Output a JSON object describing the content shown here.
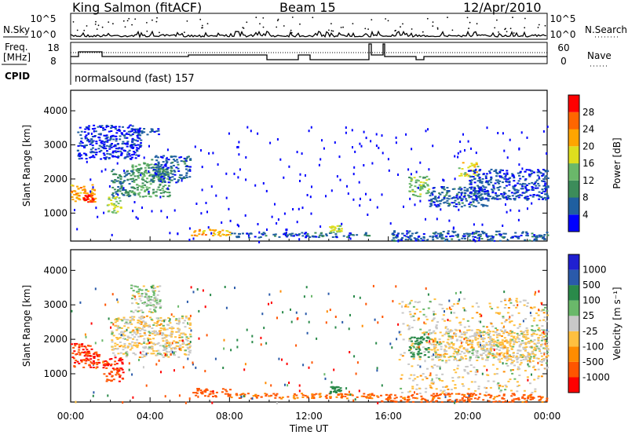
{
  "header": {
    "station": "King Salmon (fitACF)",
    "beam": "Beam 15",
    "date": "12/Apr/2010"
  },
  "top_panels": {
    "nsky_label": "N.Sky",
    "nsearch_label": "N.Search",
    "count_ticks": [
      "10^5",
      "10^0"
    ],
    "freq_label": "Freq.",
    "freq_unit": "[MHz]",
    "freq_ticks": [
      18,
      8
    ],
    "nave_label": "Nave",
    "nave_ticks": [
      60,
      0
    ],
    "cpid_label": "CPID",
    "cpid_value": "normalsound (fast) 157"
  },
  "colors": {
    "power_scale": [
      "#0000ff",
      "#1f5fa0",
      "#3c8c5a",
      "#6ab86a",
      "#dede1e",
      "#ffa500",
      "#ff6600",
      "#ff0000"
    ],
    "velocity_scale": [
      "#ff0000",
      "#ff5500",
      "#ff8c00",
      "#ffc040",
      "#c8c8c8",
      "#6ab86a",
      "#2a8a4a",
      "#2a5aaa",
      "#2020d0"
    ]
  },
  "chart_data": [
    {
      "type": "heatmap",
      "panel": "power",
      "ylabel": "Slant Range [km]",
      "yticks": [
        1000,
        2000,
        3000,
        4000
      ],
      "ylim": [
        180,
        4600
      ],
      "xlim": [
        0,
        24
      ],
      "colorbar": {
        "label": "Power [dB]",
        "ticks": [
          4,
          8,
          12,
          16,
          20,
          24,
          28
        ],
        "range": [
          0,
          32
        ]
      },
      "regions": [
        {
          "t0": 0.0,
          "t1": 1.2,
          "r0": 1350,
          "r1": 1850,
          "level": 22
        },
        {
          "t0": 0.6,
          "t1": 1.1,
          "r0": 1350,
          "r1": 1550,
          "level": 28
        },
        {
          "t0": 1.8,
          "t1": 2.5,
          "r0": 1000,
          "r1": 1500,
          "level": 16
        },
        {
          "t0": 2.0,
          "t1": 3.2,
          "r0": 1500,
          "r1": 2300,
          "level": 8
        },
        {
          "t0": 3.0,
          "t1": 5.0,
          "r0": 1500,
          "r1": 2500,
          "level": 12
        },
        {
          "t0": 4.0,
          "t1": 6.0,
          "r0": 1900,
          "r1": 2700,
          "level": 6
        },
        {
          "t0": 6.0,
          "t1": 8.0,
          "r0": 350,
          "r1": 550,
          "level": 22
        },
        {
          "t0": 8.0,
          "t1": 15.0,
          "r0": 300,
          "r1": 450,
          "level": 6
        },
        {
          "t0": 13.0,
          "t1": 13.6,
          "r0": 450,
          "r1": 650,
          "level": 16
        },
        {
          "t0": 16.0,
          "t1": 24.0,
          "r0": 200,
          "r1": 500,
          "level": 6
        },
        {
          "t0": 17.0,
          "t1": 18.0,
          "r0": 1500,
          "r1": 2100,
          "level": 14
        },
        {
          "t0": 18.0,
          "t1": 21.0,
          "r0": 1200,
          "r1": 1800,
          "level": 6
        },
        {
          "t0": 19.5,
          "t1": 20.5,
          "r0": 2100,
          "r1": 2500,
          "level": 18
        },
        {
          "t0": 20.0,
          "t1": 24.0,
          "r0": 1400,
          "r1": 2300,
          "level": 5
        },
        {
          "t0": 3.0,
          "t1": 4.5,
          "r0": 3300,
          "r1": 3500,
          "level": 5
        },
        {
          "t0": 0.3,
          "t1": 3.5,
          "r0": 2600,
          "r1": 3600,
          "level": 4
        }
      ]
    },
    {
      "type": "heatmap",
      "panel": "velocity",
      "ylabel": "Slant Range [km]",
      "xlabel": "Time UT",
      "xticks": [
        "00:00",
        "04:00",
        "08:00",
        "12:00",
        "16:00",
        "20:00",
        "00:00"
      ],
      "yticks": [
        1000,
        2000,
        3000,
        4000
      ],
      "ylim": [
        180,
        4600
      ],
      "xlim": [
        0,
        24
      ],
      "colorbar": {
        "label": "Velocity [m s⁻¹]",
        "ticks": [
          1000,
          500,
          100,
          25,
          -25,
          -100,
          -500,
          -1000
        ]
      },
      "regions": [
        {
          "t0": 0.0,
          "t1": 1.4,
          "r0": 1200,
          "r1": 1900,
          "v": -500
        },
        {
          "t0": 1.6,
          "t1": 2.6,
          "r0": 800,
          "r1": 1500,
          "v": -500
        },
        {
          "t0": 2.0,
          "t1": 6.0,
          "r0": 1500,
          "r1": 2700,
          "v": 0
        },
        {
          "t0": 3.0,
          "t1": 4.5,
          "r0": 2800,
          "r1": 3600,
          "v": 20
        },
        {
          "t0": 6.0,
          "t1": 8.0,
          "r0": 350,
          "r1": 600,
          "v": -300
        },
        {
          "t0": 8.0,
          "t1": 15.5,
          "r0": 300,
          "r1": 450,
          "v": -100
        },
        {
          "t0": 13.0,
          "t1": 13.6,
          "r0": 450,
          "r1": 650,
          "v": 150
        },
        {
          "t0": 15.5,
          "t1": 24.0,
          "r0": 200,
          "r1": 450,
          "v": -120
        },
        {
          "t0": 16.5,
          "t1": 24.0,
          "r0": 450,
          "r1": 3200,
          "v": 0
        },
        {
          "t0": 17.0,
          "t1": 18.0,
          "r0": 1500,
          "r1": 2100,
          "v": 200
        },
        {
          "t0": 18.0,
          "t1": 24.0,
          "r0": 1400,
          "r1": 2300,
          "v": 0
        }
      ]
    }
  ]
}
